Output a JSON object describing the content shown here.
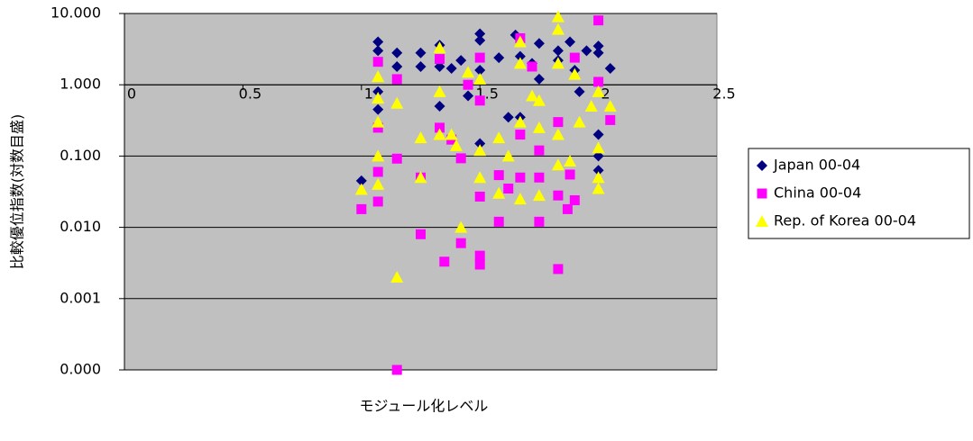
{
  "chart_data": {
    "type": "scatter",
    "x_label": "モジュール化レベル",
    "y_label": "比較優位指数(対数目盛)",
    "y_log": true,
    "grid": true,
    "background": "#c0c0c0",
    "legend": "right",
    "x_axis_crosses": 1,
    "xlim": [
      0,
      2.5
    ],
    "xticks": [
      0,
      0.5,
      1,
      1.5,
      2,
      2.5
    ],
    "ylim": [
      0.0001,
      10
    ],
    "yticks": [
      {
        "value": 0.0001,
        "label": "0.000"
      },
      {
        "value": 0.001,
        "label": "0.001"
      },
      {
        "value": 0.01,
        "label": "0.010"
      },
      {
        "value": 0.1,
        "label": "0.100"
      },
      {
        "value": 1,
        "label": "1.000"
      },
      {
        "value": 10,
        "label": "10.000"
      }
    ],
    "series": [
      {
        "name": "Japan 00-04",
        "color": "#000080",
        "marker": "diamond",
        "x": [
          1.0,
          1.07,
          1.07,
          1.07,
          1.07,
          1.15,
          1.15,
          1.25,
          1.25,
          1.33,
          1.33,
          1.33,
          1.38,
          1.42,
          1.45,
          1.5,
          1.5,
          1.5,
          1.5,
          1.58,
          1.62,
          1.65,
          1.67,
          1.67,
          1.72,
          1.75,
          1.75,
          1.83,
          1.83,
          1.88,
          1.9,
          1.92,
          1.95,
          2.0,
          2.0,
          2.0,
          2.0,
          2.0,
          2.05
        ],
        "values": [
          0.045,
          4.0,
          3.0,
          0.8,
          0.45,
          2.8,
          1.8,
          2.8,
          1.8,
          3.6,
          1.8,
          0.5,
          1.7,
          2.2,
          0.7,
          5.2,
          4.2,
          1.6,
          0.15,
          2.4,
          0.35,
          5.0,
          2.5,
          0.35,
          2.0,
          3.8,
          1.2,
          3.0,
          2.2,
          4.0,
          1.6,
          0.8,
          3.0,
          3.5,
          2.8,
          0.2,
          0.1,
          0.063,
          1.7
        ]
      },
      {
        "name": "China 00-04",
        "color": "#ff00ff",
        "marker": "square",
        "x": [
          1.0,
          1.07,
          1.07,
          1.07,
          1.07,
          1.15,
          1.15,
          1.15,
          1.25,
          1.25,
          1.33,
          1.33,
          1.35,
          1.38,
          1.42,
          1.42,
          1.45,
          1.5,
          1.5,
          1.5,
          1.5,
          1.5,
          1.58,
          1.58,
          1.62,
          1.67,
          1.67,
          1.67,
          1.72,
          1.75,
          1.75,
          1.75,
          1.83,
          1.83,
          1.83,
          1.87,
          1.88,
          1.9,
          1.9,
          2.0,
          2.0,
          2.05
        ],
        "values": [
          0.018,
          2.1,
          0.25,
          0.06,
          0.023,
          1.2,
          0.092,
          0.0001,
          0.05,
          0.008,
          2.3,
          0.25,
          0.0033,
          0.17,
          0.093,
          0.006,
          1.0,
          2.4,
          0.6,
          0.027,
          0.004,
          0.003,
          0.054,
          0.012,
          0.035,
          4.5,
          0.2,
          0.05,
          1.8,
          0.12,
          0.05,
          0.012,
          0.3,
          0.028,
          0.0026,
          0.018,
          0.055,
          2.4,
          0.024,
          8.0,
          1.1,
          0.32
        ]
      },
      {
        "name": "Rep. of Korea 00-04",
        "color": "#ffff00",
        "marker": "triangle",
        "x": [
          1.0,
          1.07,
          1.07,
          1.07,
          1.07,
          1.07,
          1.15,
          1.15,
          1.25,
          1.25,
          1.33,
          1.33,
          1.33,
          1.38,
          1.4,
          1.42,
          1.45,
          1.5,
          1.5,
          1.5,
          1.58,
          1.58,
          1.62,
          1.67,
          1.67,
          1.67,
          1.67,
          1.72,
          1.75,
          1.75,
          1.75,
          1.83,
          1.83,
          1.83,
          1.83,
          1.83,
          1.88,
          1.9,
          1.92,
          1.97,
          2.0,
          2.0,
          2.0,
          2.0,
          2.05
        ],
        "values": [
          0.034,
          1.3,
          0.65,
          0.3,
          0.1,
          0.04,
          0.55,
          0.002,
          0.18,
          0.05,
          3.3,
          0.8,
          0.2,
          0.2,
          0.14,
          0.01,
          1.5,
          1.2,
          0.12,
          0.05,
          0.03,
          0.18,
          0.1,
          4.0,
          2.0,
          0.3,
          0.025,
          0.7,
          0.6,
          0.25,
          0.028,
          9.0,
          6.0,
          2.0,
          0.2,
          0.075,
          0.085,
          1.4,
          0.3,
          0.5,
          0.8,
          0.13,
          0.05,
          0.035,
          0.5
        ]
      }
    ]
  }
}
